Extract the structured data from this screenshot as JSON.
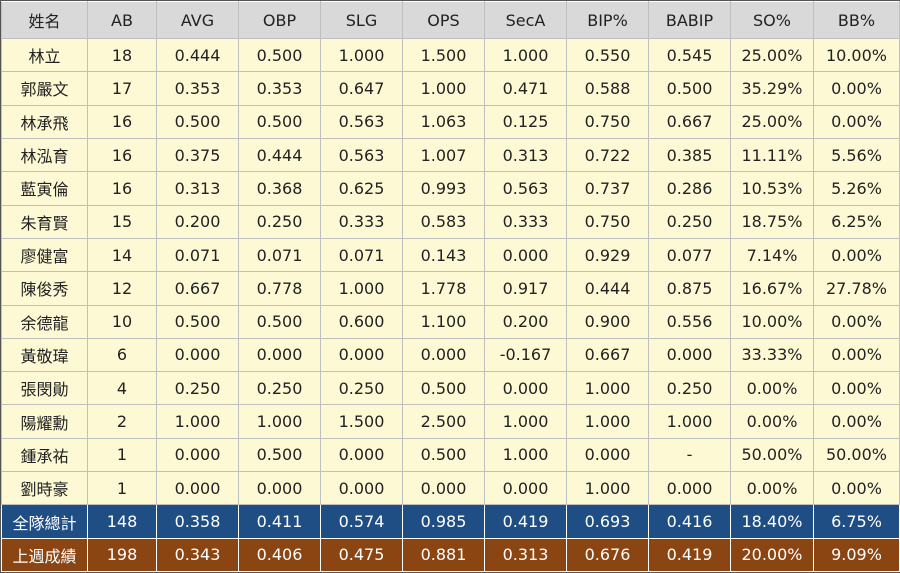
{
  "columns": [
    "姓名",
    "AB",
    "AVG",
    "OBP",
    "SLG",
    "OPS",
    "SecA",
    "BIP%",
    "BABIP",
    "SO%",
    "BB%"
  ],
  "rows": [
    [
      "林立",
      "18",
      "0.444",
      "0.500",
      "1.000",
      "1.500",
      "1.000",
      "0.550",
      "0.545",
      "25.00%",
      "10.00%"
    ],
    [
      "郭嚴文",
      "17",
      "0.353",
      "0.353",
      "0.647",
      "1.000",
      "0.471",
      "0.588",
      "0.500",
      "35.29%",
      "0.00%"
    ],
    [
      "林承飛",
      "16",
      "0.500",
      "0.500",
      "0.563",
      "1.063",
      "0.125",
      "0.750",
      "0.667",
      "25.00%",
      "0.00%"
    ],
    [
      "林泓育",
      "16",
      "0.375",
      "0.444",
      "0.563",
      "1.007",
      "0.313",
      "0.722",
      "0.385",
      "11.11%",
      "5.56%"
    ],
    [
      "藍寅倫",
      "16",
      "0.313",
      "0.368",
      "0.625",
      "0.993",
      "0.563",
      "0.737",
      "0.286",
      "10.53%",
      "5.26%"
    ],
    [
      "朱育賢",
      "15",
      "0.200",
      "0.250",
      "0.333",
      "0.583",
      "0.333",
      "0.750",
      "0.250",
      "18.75%",
      "6.25%"
    ],
    [
      "廖健富",
      "14",
      "0.071",
      "0.071",
      "0.071",
      "0.143",
      "0.000",
      "0.929",
      "0.077",
      "7.14%",
      "0.00%"
    ],
    [
      "陳俊秀",
      "12",
      "0.667",
      "0.778",
      "1.000",
      "1.778",
      "0.917",
      "0.444",
      "0.875",
      "16.67%",
      "27.78%"
    ],
    [
      "余德龍",
      "10",
      "0.500",
      "0.500",
      "0.600",
      "1.100",
      "0.200",
      "0.900",
      "0.556",
      "10.00%",
      "0.00%"
    ],
    [
      "黃敬瑋",
      "6",
      "0.000",
      "0.000",
      "0.000",
      "0.000",
      "-0.167",
      "0.667",
      "0.000",
      "33.33%",
      "0.00%"
    ],
    [
      "張閔勛",
      "4",
      "0.250",
      "0.250",
      "0.250",
      "0.500",
      "0.000",
      "1.000",
      "0.250",
      "0.00%",
      "0.00%"
    ],
    [
      "陽耀勳",
      "2",
      "1.000",
      "1.000",
      "1.500",
      "2.500",
      "1.000",
      "1.000",
      "1.000",
      "0.00%",
      "0.00%"
    ],
    [
      "鍾承祐",
      "1",
      "0.000",
      "0.500",
      "0.000",
      "0.500",
      "1.000",
      "0.000",
      "-",
      "50.00%",
      "50.00%"
    ],
    [
      "劉時豪",
      "1",
      "0.000",
      "0.000",
      "0.000",
      "0.000",
      "0.000",
      "1.000",
      "0.000",
      "0.00%",
      "0.00%"
    ]
  ],
  "team_total": [
    "全隊總計",
    "148",
    "0.358",
    "0.411",
    "0.574",
    "0.985",
    "0.419",
    "0.693",
    "0.416",
    "18.40%",
    "6.75%"
  ],
  "last_week": [
    "上週成績",
    "198",
    "0.343",
    "0.406",
    "0.475",
    "0.881",
    "0.313",
    "0.676",
    "0.419",
    "20.00%",
    "9.09%"
  ],
  "colors": {
    "header_bg": "#d9d9d9",
    "body_bg": "#fef9d5",
    "team_total_bg": "#1f4e84",
    "last_week_bg": "#8b4512",
    "grid": "#bfbfbf"
  }
}
